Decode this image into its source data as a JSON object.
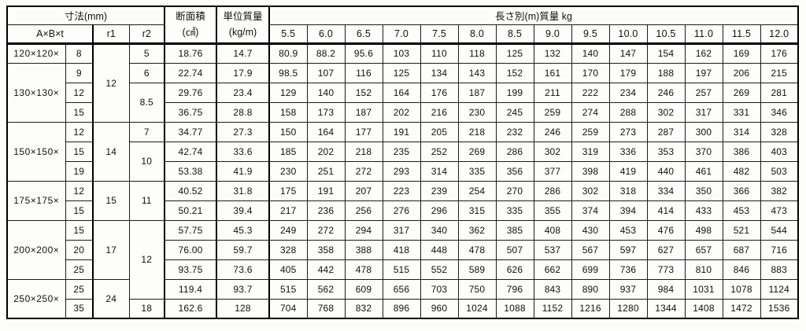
{
  "table": {
    "header": {
      "dimensions_title": "寸法(mm)",
      "size_label": "A×B×t",
      "r1_label": "r1",
      "r2_label": "r2",
      "area_label": "断面積",
      "area_unit": "(㎠)",
      "unit_mass_label": "単位質量",
      "unit_mass_unit": "(kg/m)",
      "length_group_title": "長さ別(m)質量 kg",
      "length_columns": [
        "5.5",
        "6.0",
        "6.5",
        "7.0",
        "7.5",
        "8.0",
        "8.5",
        "9.0",
        "9.5",
        "10.0",
        "10.5",
        "11.0",
        "11.5",
        "12.0"
      ]
    },
    "rows": [
      {
        "label": "120×120×",
        "label_rowspan": 1,
        "t": "8",
        "r1": "12",
        "r1_rowspan": 4,
        "r2": "5",
        "r2_rowspan": 1,
        "area": "18.76",
        "mass": "14.7",
        "weights": [
          "80.9",
          "88.2",
          "95.6",
          "103",
          "110",
          "118",
          "125",
          "132",
          "140",
          "147",
          "154",
          "162",
          "169",
          "176"
        ]
      },
      {
        "label": "130×130×",
        "label_rowspan": 3,
        "t": "9",
        "r2": "6",
        "r2_rowspan": 1,
        "area": "22.74",
        "mass": "17.9",
        "weights": [
          "98.5",
          "107",
          "116",
          "125",
          "134",
          "143",
          "152",
          "161",
          "170",
          "179",
          "188",
          "197",
          "206",
          "215"
        ]
      },
      {
        "t": "12",
        "r2": "8.5",
        "r2_rowspan": 2,
        "area": "29.76",
        "mass": "23.4",
        "weights": [
          "129",
          "140",
          "152",
          "164",
          "176",
          "187",
          "199",
          "211",
          "222",
          "234",
          "246",
          "257",
          "269",
          "281"
        ]
      },
      {
        "t": "15",
        "area": "36.75",
        "mass": "28.8",
        "weights": [
          "158",
          "173",
          "187",
          "202",
          "216",
          "230",
          "245",
          "259",
          "274",
          "288",
          "302",
          "317",
          "331",
          "346"
        ]
      },
      {
        "label": "150×150×",
        "label_rowspan": 3,
        "t": "12",
        "r1": "14",
        "r1_rowspan": 3,
        "r2": "7",
        "r2_rowspan": 1,
        "area": "34.77",
        "mass": "27.3",
        "weights": [
          "150",
          "164",
          "177",
          "191",
          "205",
          "218",
          "232",
          "246",
          "259",
          "273",
          "287",
          "300",
          "314",
          "328"
        ]
      },
      {
        "t": "15",
        "r2": "10",
        "r2_rowspan": 2,
        "area": "42.74",
        "mass": "33.6",
        "weights": [
          "185",
          "202",
          "218",
          "235",
          "252",
          "269",
          "286",
          "302",
          "319",
          "336",
          "353",
          "370",
          "386",
          "403"
        ]
      },
      {
        "t": "19",
        "area": "53.38",
        "mass": "41.9",
        "weights": [
          "230",
          "251",
          "272",
          "293",
          "314",
          "335",
          "356",
          "377",
          "398",
          "419",
          "440",
          "461",
          "482",
          "503"
        ]
      },
      {
        "label": "175×175×",
        "label_rowspan": 2,
        "t": "12",
        "r1": "15",
        "r1_rowspan": 2,
        "r2": "11",
        "r2_rowspan": 2,
        "area": "40.52",
        "mass": "31.8",
        "weights": [
          "175",
          "191",
          "207",
          "223",
          "239",
          "254",
          "270",
          "286",
          "302",
          "318",
          "334",
          "350",
          "366",
          "382"
        ]
      },
      {
        "t": "15",
        "area": "50.21",
        "mass": "39.4",
        "weights": [
          "217",
          "236",
          "256",
          "276",
          "296",
          "315",
          "335",
          "355",
          "374",
          "394",
          "414",
          "433",
          "453",
          "473"
        ]
      },
      {
        "label": "200×200×",
        "label_rowspan": 3,
        "t": "15",
        "r1": "17",
        "r1_rowspan": 3,
        "r2": "12",
        "r2_rowspan": 4,
        "area": "57.75",
        "mass": "45.3",
        "weights": [
          "249",
          "272",
          "294",
          "317",
          "340",
          "362",
          "385",
          "408",
          "430",
          "453",
          "476",
          "498",
          "521",
          "544"
        ]
      },
      {
        "t": "20",
        "area": "76.00",
        "mass": "59.7",
        "weights": [
          "328",
          "358",
          "388",
          "418",
          "448",
          "478",
          "507",
          "537",
          "567",
          "597",
          "627",
          "657",
          "687",
          "716"
        ]
      },
      {
        "t": "25",
        "area": "93.75",
        "mass": "73.6",
        "weights": [
          "405",
          "442",
          "478",
          "515",
          "552",
          "589",
          "626",
          "662",
          "699",
          "736",
          "773",
          "810",
          "846",
          "883"
        ]
      },
      {
        "label": "250×250×",
        "label_rowspan": 2,
        "t": "25",
        "r1": "24",
        "r1_rowspan": 2,
        "area": "119.4",
        "mass": "93.7",
        "weights": [
          "515",
          "562",
          "609",
          "656",
          "703",
          "750",
          "796",
          "843",
          "890",
          "937",
          "984",
          "1031",
          "1078",
          "1124"
        ]
      },
      {
        "t": "35",
        "r2": "18",
        "r2_rowspan": 1,
        "area": "162.6",
        "mass": "128",
        "weights": [
          "704",
          "768",
          "832",
          "896",
          "960",
          "1024",
          "1088",
          "1152",
          "1216",
          "1280",
          "1344",
          "1408",
          "1472",
          "1536"
        ]
      }
    ]
  }
}
